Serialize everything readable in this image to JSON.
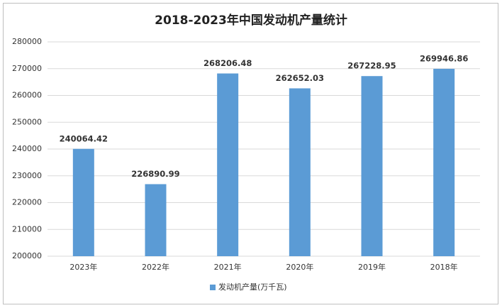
{
  "chart_data": {
    "type": "bar",
    "title": "2018-2023年中国发动机产量统计",
    "categories": [
      "2023年",
      "2022年",
      "2021年",
      "2020年",
      "2019年",
      "2018年"
    ],
    "series": [
      {
        "name": "发动机产量(万千瓦)",
        "color": "#5b9bd5",
        "values": [
          240064.42,
          226890.99,
          268206.48,
          262652.03,
          267228.95,
          269946.86
        ]
      }
    ],
    "ylim": [
      200000,
      280000
    ],
    "yticks": [
      200000,
      210000,
      220000,
      230000,
      240000,
      250000,
      260000,
      270000,
      280000
    ],
    "grid": true,
    "legend": "bottom"
  }
}
